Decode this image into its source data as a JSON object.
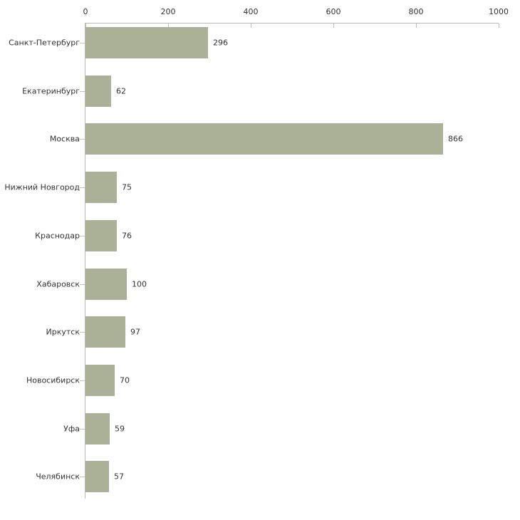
{
  "chart_data": {
    "type": "bar",
    "orientation": "horizontal",
    "title": "",
    "categories": [
      "Санкт-Петербург",
      "Екатеринбург",
      "Москва",
      "Нижний Новгород",
      "Краснодар",
      "Хабаровск",
      "Иркутск",
      "Новосибирск",
      "Уфа",
      "Челябинск"
    ],
    "values": [
      296,
      62,
      866,
      75,
      76,
      100,
      97,
      70,
      59,
      57
    ],
    "value_labels": [
      "296",
      "62",
      "866",
      "75",
      "76",
      "100",
      "97",
      "70",
      "59",
      "57"
    ],
    "xlim": [
      0,
      1000
    ],
    "x_ticks": [
      0,
      200,
      400,
      600,
      800,
      1000
    ],
    "x_tick_labels": [
      "0",
      "200",
      "400",
      "600",
      "800",
      "1000"
    ],
    "grid": false,
    "legend": false,
    "colors": {
      "bar_fill": "#abb197",
      "axis_line": "#b9b9b9",
      "tick_mark": "#c2c2a2",
      "text": "#333333",
      "background": "#ffffff"
    }
  }
}
